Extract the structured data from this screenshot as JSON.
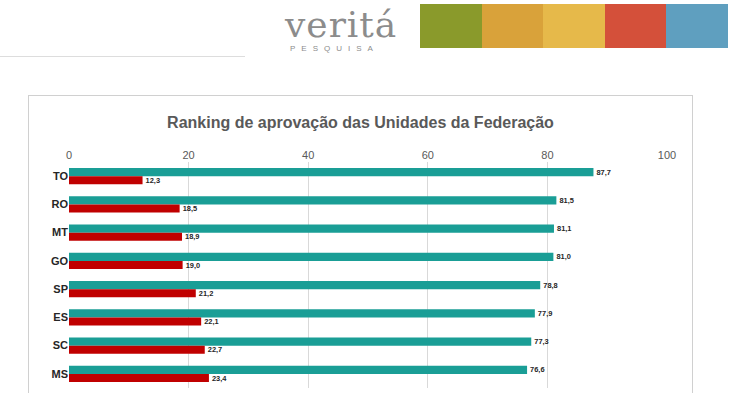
{
  "header": {
    "brand": "veritá",
    "tagline": "PESQUISA"
  },
  "chart_data": {
    "type": "bar",
    "title": "Ranking de aprovação das Unidades da Federação",
    "orientation": "horizontal",
    "categories": [
      "TO",
      "RO",
      "MT",
      "GO",
      "SP",
      "ES",
      "SC",
      "MS"
    ],
    "series": [
      {
        "color": "#1a9e96",
        "values": [
          87.7,
          81.5,
          81.1,
          81.0,
          78.8,
          77.9,
          77.3,
          76.6
        ],
        "value_labels": [
          "87,7",
          "81,5",
          "81,1",
          "81,0",
          "78,8",
          "77,9",
          "77,3",
          "76,6"
        ]
      },
      {
        "color": "#c00000",
        "values": [
          12.3,
          18.5,
          18.9,
          19.0,
          21.2,
          22.1,
          22.7,
          23.4
        ],
        "value_labels": [
          "12,3",
          "18,5",
          "18,9",
          "19,0",
          "21,2",
          "22,1",
          "22,7",
          "23,4"
        ]
      }
    ],
    "xlim": [
      0,
      100
    ],
    "xticks": [
      0,
      20,
      40,
      60,
      80,
      100
    ],
    "grid": true,
    "data_labels": true
  }
}
